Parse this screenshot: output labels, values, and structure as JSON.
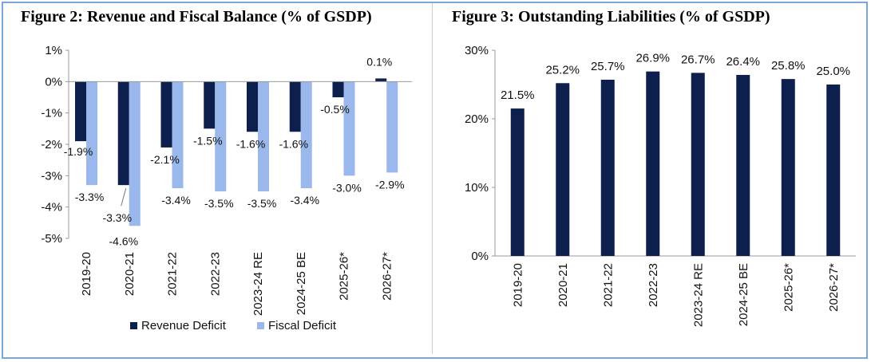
{
  "figure2": {
    "title": "Figure 2: Revenue and Fiscal Balance (% of GSDP)",
    "chart_data": {
      "type": "bar",
      "categories": [
        "2019-20",
        "2020-21",
        "2021-22",
        "2022-23",
        "2023-24 RE",
        "2024-25 BE",
        "2025-26*",
        "2026-27*"
      ],
      "series": [
        {
          "name": "Revenue Deficit",
          "values": [
            -1.9,
            -3.3,
            -2.1,
            -1.5,
            -1.6,
            -1.6,
            -0.5,
            0.1
          ],
          "labels": [
            "-1.9%",
            "-3.3%",
            "-2.1%",
            "-1.5%",
            "-1.6%",
            "-1.6%",
            "-0.5%",
            "0.1%"
          ],
          "color": "#0d1f4c"
        },
        {
          "name": "Fiscal Deficit",
          "values": [
            -3.3,
            -4.6,
            -3.4,
            -3.5,
            -3.5,
            -3.4,
            -3.0,
            -2.9
          ],
          "labels": [
            "-3.3%",
            "-4.6%",
            "-3.4%",
            "-3.5%",
            "-3.5%",
            "-3.4%",
            "-3.0%",
            "-2.9%"
          ],
          "color": "#9ab8ec"
        }
      ],
      "ylim": [
        -5,
        1
      ],
      "yticks": [
        1,
        0,
        -1,
        -2,
        -3,
        -4,
        -5
      ],
      "ytick_labels": [
        "1%",
        "0%",
        "-1%",
        "-2%",
        "-3%",
        "-4%",
        "-5%"
      ],
      "grid": false,
      "legend": "bottom"
    }
  },
  "figure3": {
    "title": "Figure 3: Outstanding Liabilities (% of GSDP)",
    "chart_data": {
      "type": "bar",
      "categories": [
        "2019-20",
        "2020-21",
        "2021-22",
        "2022-23",
        "2023-24 RE",
        "2024-25 BE",
        "2025-26*",
        "2026-27*"
      ],
      "values": [
        21.5,
        25.2,
        25.7,
        26.9,
        26.7,
        26.4,
        25.8,
        25.0
      ],
      "labels": [
        "21.5%",
        "25.2%",
        "25.7%",
        "26.9%",
        "26.7%",
        "26.4%",
        "25.8%",
        "25.0%"
      ],
      "color": "#0d1f4c",
      "ylim": [
        0,
        30
      ],
      "yticks": [
        30,
        20,
        10,
        0
      ],
      "ytick_labels": [
        "30%",
        "20%",
        "10%",
        "0%"
      ],
      "grid": false
    }
  }
}
